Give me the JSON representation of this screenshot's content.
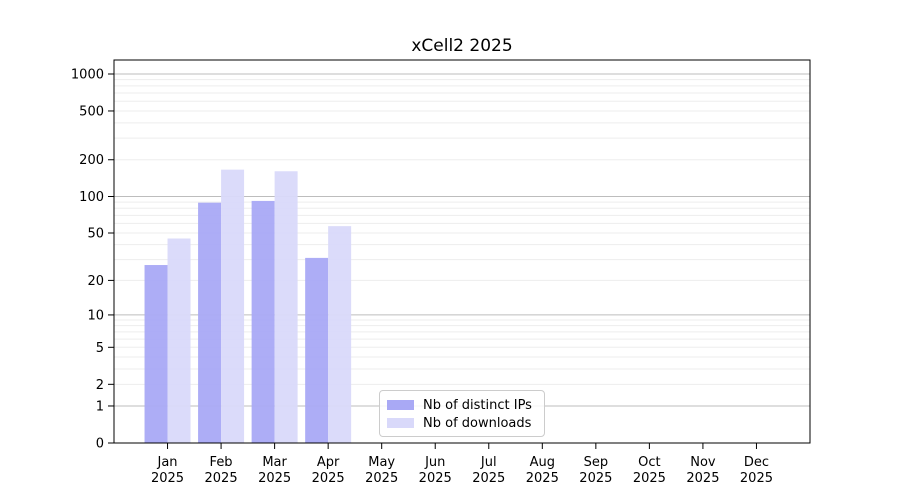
{
  "figure": {
    "title": "xCell2 2025",
    "background_color": "#ffffff"
  },
  "legend": {
    "items": [
      {
        "label": "Nb of distinct IPs",
        "color": "#a9a9f5"
      },
      {
        "label": "Nb of downloads",
        "color": "#d9d9fa"
      }
    ]
  },
  "chart_data": {
    "type": "bar",
    "title": "xCell2 2025",
    "xlabel": "",
    "ylabel": "",
    "categories": [
      {
        "month": "Jan",
        "year": "2025"
      },
      {
        "month": "Feb",
        "year": "2025"
      },
      {
        "month": "Mar",
        "year": "2025"
      },
      {
        "month": "Apr",
        "year": "2025"
      },
      {
        "month": "May",
        "year": "2025"
      },
      {
        "month": "Jun",
        "year": "2025"
      },
      {
        "month": "Jul",
        "year": "2025"
      },
      {
        "month": "Aug",
        "year": "2025"
      },
      {
        "month": "Sep",
        "year": "2025"
      },
      {
        "month": "Oct",
        "year": "2025"
      },
      {
        "month": "Nov",
        "year": "2025"
      },
      {
        "month": "Dec",
        "year": "2025"
      }
    ],
    "series": [
      {
        "name": "Nb of distinct IPs",
        "color": "#a9a9f5",
        "values": [
          27,
          89,
          92,
          31,
          null,
          null,
          null,
          null,
          null,
          null,
          null,
          null
        ]
      },
      {
        "name": "Nb of downloads",
        "color": "#d9d9fa",
        "values": [
          45,
          166,
          161,
          57,
          null,
          null,
          null,
          null,
          null,
          null,
          null,
          null
        ]
      }
    ],
    "y_axis": {
      "scale": "log1p",
      "ticks": [
        0,
        1,
        2,
        5,
        10,
        20,
        50,
        100,
        200,
        500,
        1000
      ],
      "ylim": [
        0,
        1300
      ],
      "major_gridlines": [
        1,
        10,
        100,
        1000
      ],
      "minor_gridlines": [
        2,
        3,
        4,
        5,
        6,
        7,
        8,
        9,
        20,
        30,
        40,
        50,
        60,
        70,
        80,
        90,
        200,
        300,
        400,
        500,
        600,
        700,
        800,
        900
      ]
    },
    "grid": "on",
    "legend_position": "lower-center-inside",
    "colors": {
      "major_gridline": "#bdbdbd",
      "minor_gridline": "#ededed",
      "spine": "#000000"
    }
  }
}
